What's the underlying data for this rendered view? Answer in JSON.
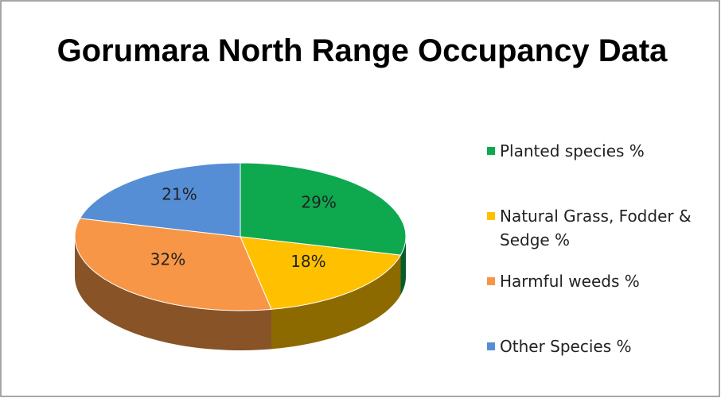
{
  "chart_data": {
    "type": "pie3d",
    "title": "Gorumara North Range Occupancy Data",
    "categories": [
      "Planted species %",
      "Natural Grass, Fodder & Sedge %",
      "Harmful weeds %",
      "Other Species %"
    ],
    "values": [
      29,
      18,
      32,
      21
    ],
    "value_labels": [
      "29%",
      "18%",
      "32%",
      "21%"
    ],
    "colors": [
      "#0ea84f",
      "#ffc000",
      "#f79646",
      "#558ed5"
    ],
    "legend": "right"
  }
}
